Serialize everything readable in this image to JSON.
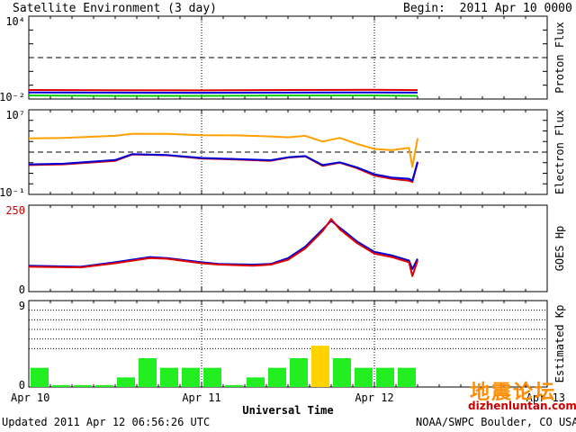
{
  "header": {
    "title": "Satellite Environment (3 day)",
    "begin": "Begin:  2011 Apr 10 0000 UTC"
  },
  "footer": {
    "updated": "Updated 2011 Apr 12 06:56:26 UTC",
    "credit": "NOAA/SWPC Boulder, CO USA"
  },
  "watermark": {
    "cn": "地震论坛",
    "url": "dizhenluntan.com"
  },
  "chart_data": [
    {
      "type": "line",
      "panel": "proton-flux",
      "ylabel": "Proton Flux",
      "yscale": "log",
      "ylim": [
        0.01,
        10000
      ],
      "tick_labels": [
        "10⁴",
        "10⁻²"
      ],
      "threshold": 10,
      "x_unit": "days since 2011 Apr 10 00 UTC",
      "series": [
        {
          "color": "#e00000",
          "x": [
            0,
            0.5,
            1.0,
            1.5,
            2.0,
            2.25
          ],
          "values": [
            0.045,
            0.043,
            0.042,
            0.045,
            0.046,
            0.044
          ]
        },
        {
          "color": "#0000d8",
          "x": [
            0,
            0.5,
            1.0,
            1.5,
            2.0,
            2.25
          ],
          "values": [
            0.03,
            0.029,
            0.028,
            0.029,
            0.03,
            0.029
          ]
        },
        {
          "color": "#00cc00",
          "x": [
            0,
            0.5,
            1.0,
            1.5,
            2.0,
            2.25
          ],
          "values": [
            0.018,
            0.017,
            0.017,
            0.018,
            0.018,
            0.017
          ]
        }
      ]
    },
    {
      "type": "line",
      "panel": "electron-flux",
      "ylabel": "Electron Flux",
      "yscale": "log",
      "ylim": [
        0.1,
        10000000
      ],
      "tick_labels": [
        "10⁷",
        "10⁻¹"
      ],
      "threshold": 1000,
      "series": [
        {
          "color": "#ffa000",
          "x": [
            0,
            0.2,
            0.5,
            0.6,
            0.8,
            1.0,
            1.2,
            1.4,
            1.5,
            1.6,
            1.7,
            1.8,
            1.9,
            2.0,
            2.1,
            2.2,
            2.22,
            2.25
          ],
          "values": [
            20000,
            22000,
            35000,
            55000,
            52000,
            40000,
            38000,
            30000,
            25000,
            35000,
            10000,
            22000,
            6000,
            2000,
            1500,
            2500,
            40,
            20000
          ]
        },
        {
          "color": "#e00000",
          "x": [
            0,
            0.2,
            0.5,
            0.6,
            0.8,
            1.0,
            1.2,
            1.4,
            1.5,
            1.6,
            1.7,
            1.8,
            1.9,
            2.0,
            2.1,
            2.2,
            2.22,
            2.25
          ],
          "values": [
            60,
            70,
            150,
            600,
            500,
            250,
            200,
            150,
            300,
            400,
            50,
            100,
            30,
            6,
            3,
            2,
            1.5,
            100
          ]
        },
        {
          "color": "#0000d8",
          "x": [
            0,
            0.2,
            0.5,
            0.6,
            0.8,
            1.0,
            1.2,
            1.4,
            1.5,
            1.6,
            1.7,
            1.8,
            1.9,
            2.0,
            2.1,
            2.2,
            2.22,
            2.25
          ],
          "values": [
            70,
            80,
            180,
            650,
            520,
            280,
            220,
            170,
            320,
            420,
            60,
            110,
            35,
            8,
            4,
            3,
            2,
            120
          ]
        }
      ]
    },
    {
      "type": "line",
      "panel": "goes-hp",
      "ylabel": "GOES Hp",
      "ylim": [
        0,
        250
      ],
      "tick_labels": [
        "250",
        "0"
      ],
      "series": [
        {
          "color": "#0000d8",
          "x": [
            0,
            0.3,
            0.5,
            0.7,
            0.8,
            1.0,
            1.1,
            1.3,
            1.4,
            1.5,
            1.6,
            1.7,
            1.75,
            1.8,
            1.9,
            2.0,
            2.1,
            2.2,
            2.22,
            2.25
          ],
          "values": [
            75,
            72,
            85,
            100,
            97,
            85,
            80,
            78,
            80,
            97,
            130,
            180,
            205,
            185,
            145,
            115,
            105,
            90,
            65,
            95
          ]
        },
        {
          "color": "#e00000",
          "x": [
            0,
            0.3,
            0.5,
            0.7,
            0.8,
            1.0,
            1.1,
            1.3,
            1.4,
            1.5,
            1.6,
            1.7,
            1.75,
            1.8,
            1.9,
            2.0,
            2.1,
            2.2,
            2.22,
            2.25
          ],
          "values": [
            72,
            70,
            82,
            97,
            95,
            82,
            78,
            75,
            78,
            92,
            125,
            175,
            210,
            180,
            140,
            110,
            100,
            85,
            45,
            90
          ]
        }
      ]
    },
    {
      "type": "bar",
      "panel": "estimated-kp",
      "ylabel": "Estimated Kp",
      "ylim": [
        0,
        9
      ],
      "tick_labels": [
        "9",
        "0"
      ],
      "xlabel": "Universal Time",
      "x_tick_labels": [
        "Apr 10",
        "Apr 11",
        "Apr 12",
        "Apr 13"
      ],
      "bar_width_days": 0.125,
      "x": [
        0,
        0.125,
        0.25,
        0.375,
        0.5,
        0.625,
        0.75,
        0.875,
        1.0,
        1.125,
        1.25,
        1.375,
        1.5,
        1.625,
        1.75,
        1.875,
        2.0,
        2.125,
        2.25
      ],
      "values": [
        2,
        0.2,
        0.2,
        0.2,
        1,
        3,
        2,
        2,
        2,
        0.2,
        1,
        2,
        3,
        4.3,
        3,
        2,
        2,
        2,
        0
      ],
      "colors": [
        "#22ee22",
        "#22ee22",
        "#22ee22",
        "#22ee22",
        "#22ee22",
        "#22ee22",
        "#22ee22",
        "#22ee22",
        "#22ee22",
        "#22ee22",
        "#22ee22",
        "#22ee22",
        "#22ee22",
        "#ffd200",
        "#22ee22",
        "#22ee22",
        "#22ee22",
        "#22ee22",
        "#22ee22"
      ]
    }
  ]
}
